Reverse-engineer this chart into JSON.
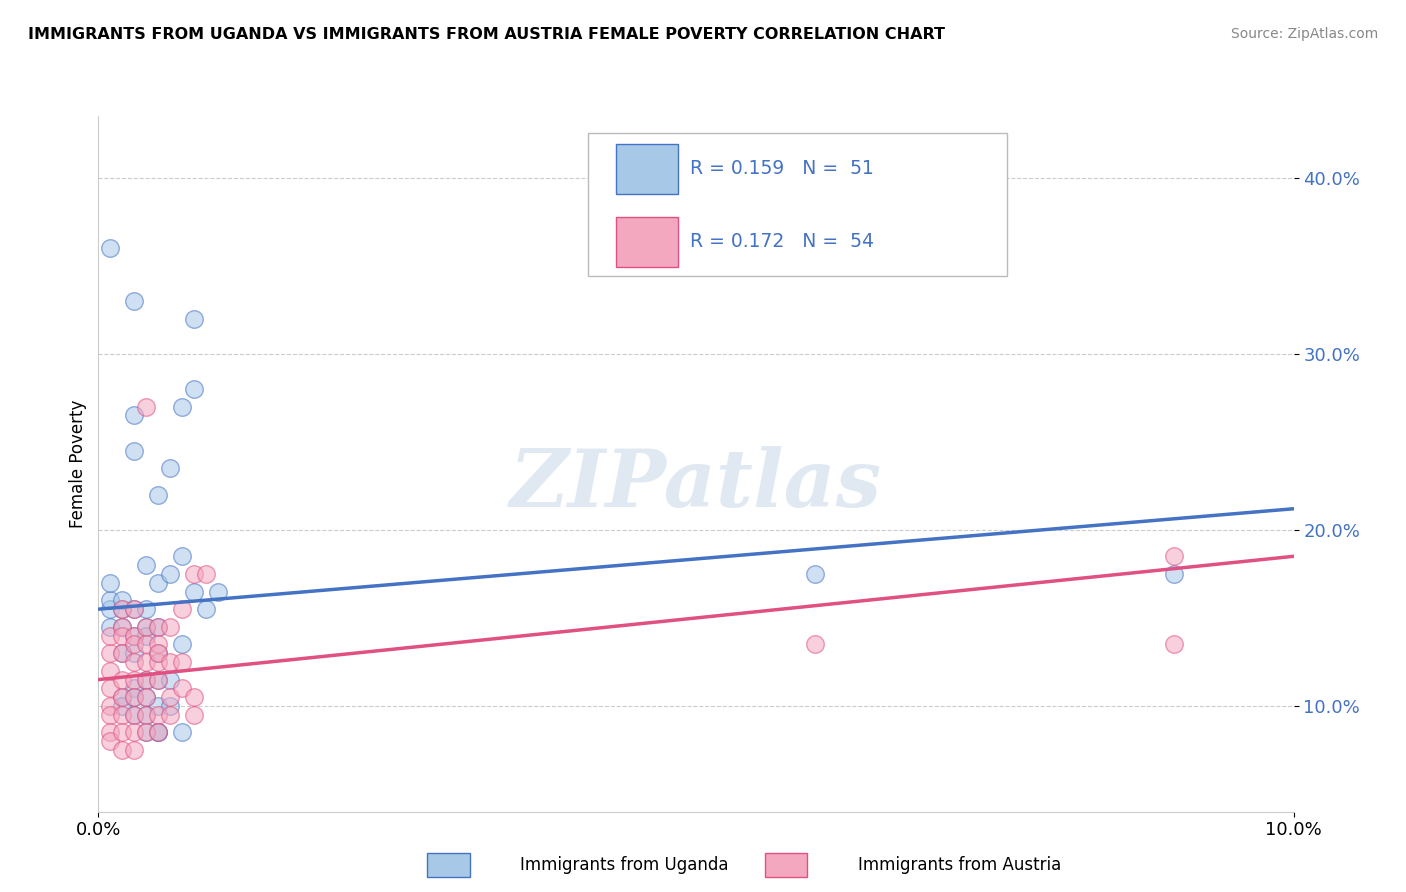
{
  "title": "IMMIGRANTS FROM UGANDA VS IMMIGRANTS FROM AUSTRIA FEMALE POVERTY CORRELATION CHART",
  "source": "Source: ZipAtlas.com",
  "ylabel": "Female Poverty",
  "y_ticks": [
    0.1,
    0.2,
    0.3,
    0.4
  ],
  "y_tick_labels": [
    "10.0%",
    "20.0%",
    "30.0%",
    "40.0%"
  ],
  "xlim": [
    0.0,
    0.1
  ],
  "ylim": [
    0.04,
    0.435
  ],
  "legend_label1": "Immigrants from Uganda",
  "legend_label2": "Immigrants from Austria",
  "color_uganda": "#A8C8E8",
  "color_austria": "#F4A8C0",
  "color_uganda_line": "#4472C4",
  "color_austria_line": "#E05080",
  "watermark": "ZIPatlas",
  "uganda_points": [
    [
      0.001,
      0.155
    ],
    [
      0.001,
      0.16
    ],
    [
      0.001,
      0.145
    ],
    [
      0.001,
      0.17
    ],
    [
      0.001,
      0.36
    ],
    [
      0.002,
      0.155
    ],
    [
      0.002,
      0.16
    ],
    [
      0.002,
      0.13
    ],
    [
      0.002,
      0.145
    ],
    [
      0.002,
      0.105
    ],
    [
      0.002,
      0.1
    ],
    [
      0.003,
      0.155
    ],
    [
      0.003,
      0.14
    ],
    [
      0.003,
      0.13
    ],
    [
      0.003,
      0.11
    ],
    [
      0.003,
      0.105
    ],
    [
      0.003,
      0.095
    ],
    [
      0.003,
      0.33
    ],
    [
      0.003,
      0.265
    ],
    [
      0.003,
      0.245
    ],
    [
      0.004,
      0.18
    ],
    [
      0.004,
      0.155
    ],
    [
      0.004,
      0.145
    ],
    [
      0.004,
      0.14
    ],
    [
      0.004,
      0.115
    ],
    [
      0.004,
      0.105
    ],
    [
      0.004,
      0.095
    ],
    [
      0.004,
      0.085
    ],
    [
      0.005,
      0.22
    ],
    [
      0.005,
      0.17
    ],
    [
      0.005,
      0.145
    ],
    [
      0.005,
      0.13
    ],
    [
      0.005,
      0.115
    ],
    [
      0.005,
      0.1
    ],
    [
      0.005,
      0.085
    ],
    [
      0.005,
      0.085
    ],
    [
      0.006,
      0.235
    ],
    [
      0.006,
      0.175
    ],
    [
      0.006,
      0.115
    ],
    [
      0.006,
      0.1
    ],
    [
      0.007,
      0.27
    ],
    [
      0.007,
      0.185
    ],
    [
      0.007,
      0.135
    ],
    [
      0.007,
      0.085
    ],
    [
      0.008,
      0.32
    ],
    [
      0.008,
      0.28
    ],
    [
      0.008,
      0.165
    ],
    [
      0.009,
      0.155
    ],
    [
      0.01,
      0.165
    ],
    [
      0.06,
      0.175
    ],
    [
      0.09,
      0.175
    ]
  ],
  "austria_points": [
    [
      0.001,
      0.13
    ],
    [
      0.001,
      0.14
    ],
    [
      0.001,
      0.12
    ],
    [
      0.001,
      0.11
    ],
    [
      0.001,
      0.1
    ],
    [
      0.001,
      0.095
    ],
    [
      0.001,
      0.085
    ],
    [
      0.001,
      0.08
    ],
    [
      0.002,
      0.155
    ],
    [
      0.002,
      0.145
    ],
    [
      0.002,
      0.14
    ],
    [
      0.002,
      0.13
    ],
    [
      0.002,
      0.115
    ],
    [
      0.002,
      0.105
    ],
    [
      0.002,
      0.095
    ],
    [
      0.002,
      0.085
    ],
    [
      0.002,
      0.075
    ],
    [
      0.003,
      0.155
    ],
    [
      0.003,
      0.14
    ],
    [
      0.003,
      0.135
    ],
    [
      0.003,
      0.125
    ],
    [
      0.003,
      0.115
    ],
    [
      0.003,
      0.105
    ],
    [
      0.003,
      0.095
    ],
    [
      0.003,
      0.085
    ],
    [
      0.003,
      0.075
    ],
    [
      0.004,
      0.27
    ],
    [
      0.004,
      0.145
    ],
    [
      0.004,
      0.135
    ],
    [
      0.004,
      0.125
    ],
    [
      0.004,
      0.115
    ],
    [
      0.004,
      0.105
    ],
    [
      0.004,
      0.095
    ],
    [
      0.004,
      0.085
    ],
    [
      0.005,
      0.145
    ],
    [
      0.005,
      0.135
    ],
    [
      0.005,
      0.125
    ],
    [
      0.005,
      0.115
    ],
    [
      0.005,
      0.095
    ],
    [
      0.005,
      0.085
    ],
    [
      0.005,
      0.13
    ],
    [
      0.006,
      0.145
    ],
    [
      0.006,
      0.125
    ],
    [
      0.006,
      0.105
    ],
    [
      0.006,
      0.095
    ],
    [
      0.007,
      0.155
    ],
    [
      0.007,
      0.125
    ],
    [
      0.007,
      0.11
    ],
    [
      0.008,
      0.175
    ],
    [
      0.008,
      0.105
    ],
    [
      0.008,
      0.095
    ],
    [
      0.009,
      0.175
    ],
    [
      0.06,
      0.135
    ],
    [
      0.09,
      0.185
    ],
    [
      0.09,
      0.135
    ]
  ],
  "line_uganda": {
    "x0": 0.0,
    "x1": 0.1,
    "y0": 0.155,
    "y1": 0.212
  },
  "line_austria": {
    "x0": 0.0,
    "x1": 0.1,
    "y0": 0.115,
    "y1": 0.185
  }
}
